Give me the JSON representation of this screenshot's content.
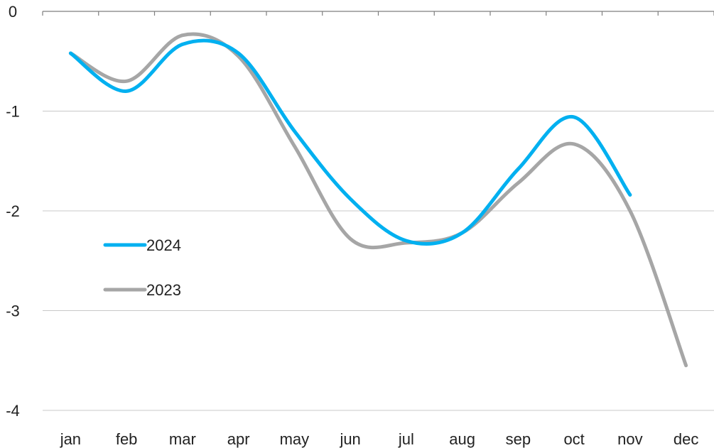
{
  "chart_data": {
    "type": "line",
    "categories": [
      "jan",
      "feb",
      "mar",
      "apr",
      "may",
      "jun",
      "jul",
      "aug",
      "sep",
      "oct",
      "nov",
      "dec"
    ],
    "series": [
      {
        "name": "2024",
        "color": "#00b0f0",
        "values": [
          -0.42,
          -0.8,
          -0.33,
          -0.42,
          -1.2,
          -1.88,
          -2.3,
          -2.22,
          -1.58,
          -1.06,
          -1.84,
          null
        ]
      },
      {
        "name": "2023",
        "color": "#a6a6a6",
        "values": [
          -0.42,
          -0.7,
          -0.24,
          -0.45,
          -1.35,
          -2.28,
          -2.32,
          -2.22,
          -1.72,
          -1.33,
          -2.0,
          -3.55
        ]
      }
    ],
    "y_ticks": [
      "0",
      "-1",
      "-2",
      "-3",
      "-4"
    ],
    "ylim": [
      -4,
      0
    ],
    "grid": true,
    "legend": "left-middle",
    "title": "",
    "xlabel": "",
    "ylabel": ""
  }
}
